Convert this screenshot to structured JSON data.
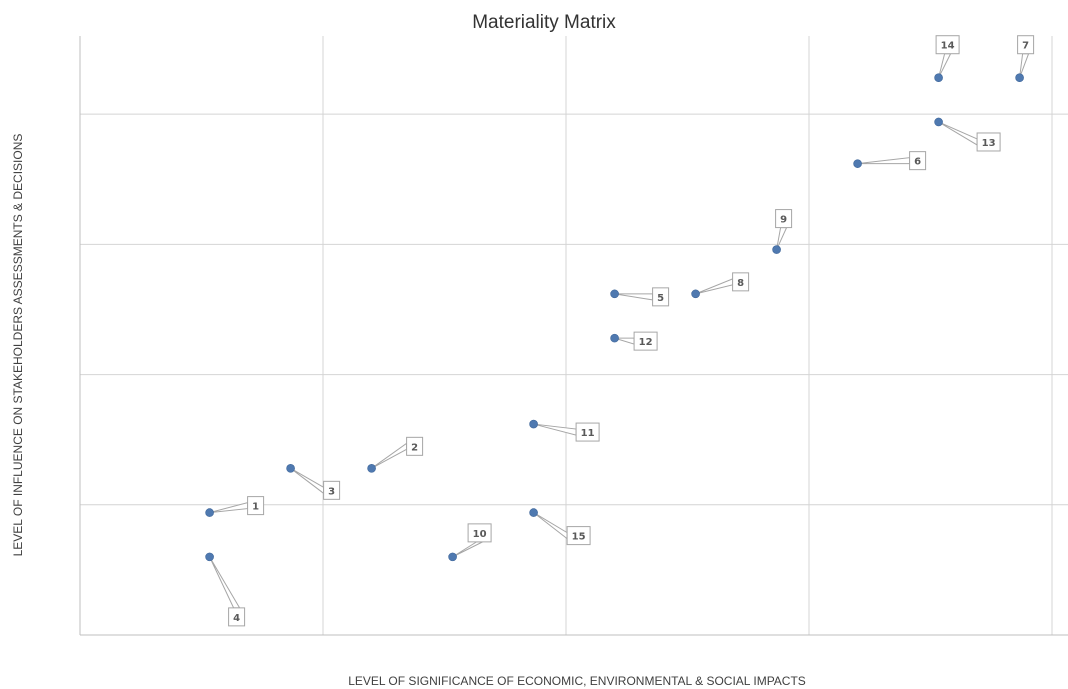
{
  "chart_data": {
    "type": "scatter",
    "title": "Materiality Matrix",
    "xlabel": "LEVEL OF SIGNIFICANCE OF ECONOMIC, ENVIRONMENTAL & SOCIAL IMPACTS",
    "ylabel": "LEVEL OF INFLUENCE ON STAKEHOLDERS ASSESSMENTS & DECISIONS",
    "xlim": [
      0,
      12
    ],
    "ylim": [
      0,
      12
    ],
    "x_grid_step": 3,
    "y_grid_step": 2.5,
    "grid": true,
    "tick_labels_shown": false,
    "legend": "none",
    "colors": {
      "point": "#4f79b0",
      "grid": "#d4d4d4",
      "callout_border": "#a6a6a6"
    },
    "points": [
      {
        "label": "1",
        "x": 1.6,
        "y": 2.35
      },
      {
        "label": "2",
        "x": 3.6,
        "y": 3.2
      },
      {
        "label": "3",
        "x": 2.6,
        "y": 3.2
      },
      {
        "label": "4",
        "x": 1.6,
        "y": 1.5
      },
      {
        "label": "5",
        "x": 6.6,
        "y": 6.55
      },
      {
        "label": "6",
        "x": 9.6,
        "y": 9.05
      },
      {
        "label": "7",
        "x": 11.6,
        "y": 10.7
      },
      {
        "label": "8",
        "x": 7.6,
        "y": 6.55
      },
      {
        "label": "9",
        "x": 8.6,
        "y": 7.4
      },
      {
        "label": "10",
        "x": 4.6,
        "y": 1.5
      },
      {
        "label": "11",
        "x": 5.6,
        "y": 4.05
      },
      {
        "label": "12",
        "x": 6.6,
        "y": 5.7
      },
      {
        "label": "13",
        "x": 10.6,
        "y": 9.85
      },
      {
        "label": "14",
        "x": 10.6,
        "y": 10.7
      },
      {
        "label": "15",
        "x": 5.6,
        "y": 2.35
      }
    ]
  }
}
